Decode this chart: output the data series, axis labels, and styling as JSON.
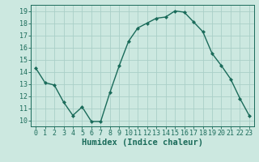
{
  "x": [
    0,
    1,
    2,
    3,
    4,
    5,
    6,
    7,
    8,
    9,
    10,
    11,
    12,
    13,
    14,
    15,
    16,
    17,
    18,
    19,
    20,
    21,
    22,
    23
  ],
  "y": [
    14.3,
    13.1,
    12.9,
    11.5,
    10.4,
    11.1,
    9.9,
    9.9,
    12.3,
    14.5,
    16.5,
    17.6,
    18.0,
    18.4,
    18.5,
    19.0,
    18.9,
    18.1,
    17.3,
    15.5,
    14.5,
    13.4,
    11.8,
    10.4
  ],
  "line_color": "#1a6b5a",
  "marker": "D",
  "marker_size": 2.0,
  "bg_color": "#cce8e0",
  "grid_color": "#aacfc8",
  "xlabel": "Humidex (Indice chaleur)",
  "ylim": [
    9.5,
    19.5
  ],
  "xlim": [
    -0.5,
    23.5
  ],
  "yticks": [
    10,
    11,
    12,
    13,
    14,
    15,
    16,
    17,
    18,
    19
  ],
  "xticks": [
    0,
    1,
    2,
    3,
    4,
    5,
    6,
    7,
    8,
    9,
    10,
    11,
    12,
    13,
    14,
    15,
    16,
    17,
    18,
    19,
    20,
    21,
    22,
    23
  ],
  "tick_fontsize": 6.0,
  "xlabel_fontsize": 7.5,
  "tick_color": "#1a6b5a",
  "axis_color": "#1a6b5a",
  "linewidth": 1.0
}
